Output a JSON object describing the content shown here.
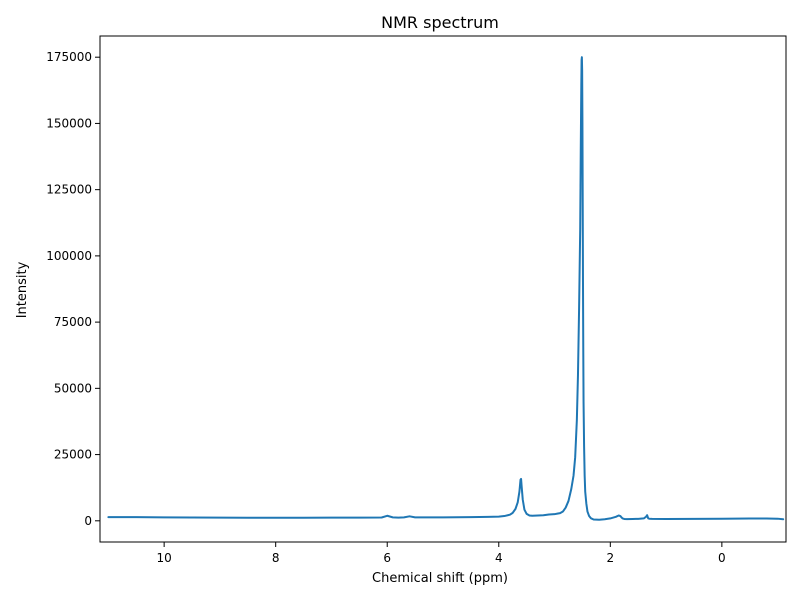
{
  "chart_data": {
    "type": "line",
    "title": "NMR spectrum",
    "xlabel": "Chemical shift (ppm)",
    "ylabel": "Intensity",
    "x_axis_inverted": true,
    "xlim": [
      11.15,
      -1.15
    ],
    "ylim": [
      -8000,
      183000
    ],
    "xticks": [
      10,
      8,
      6,
      4,
      2,
      0
    ],
    "xtick_labels": [
      "10",
      "8",
      "6",
      "4",
      "2",
      "0"
    ],
    "yticks": [
      0,
      25000,
      50000,
      75000,
      100000,
      125000,
      150000,
      175000
    ],
    "ytick_labels": [
      "0",
      "25000",
      "50000",
      "75000",
      "100000",
      "125000",
      "150000",
      "175000"
    ],
    "grid": false,
    "legend": "none",
    "line_color": "#1f77b4",
    "series": [
      {
        "x": [
          11.0,
          10.5,
          10.0,
          9.5,
          9.0,
          8.5,
          8.0,
          7.5,
          7.0,
          6.5,
          6.1,
          6.0,
          5.9,
          5.8,
          5.7,
          5.6,
          5.5,
          5.0,
          4.5,
          4.2,
          4.0,
          3.9,
          3.8,
          3.75,
          3.7,
          3.66,
          3.63,
          3.61,
          3.6,
          3.59,
          3.57,
          3.54,
          3.5,
          3.45,
          3.4,
          3.3,
          3.2,
          3.1,
          3.0,
          2.95,
          2.9,
          2.85,
          2.8,
          2.75,
          2.7,
          2.66,
          2.63,
          2.6,
          2.58,
          2.56,
          2.54,
          2.53,
          2.52,
          2.515,
          2.51,
          2.505,
          2.5,
          2.495,
          2.49,
          2.485,
          2.48,
          2.47,
          2.46,
          2.45,
          2.43,
          2.41,
          2.38,
          2.35,
          2.3,
          2.2,
          2.1,
          2.0,
          1.9,
          1.85,
          1.82,
          1.8,
          1.78,
          1.75,
          1.7,
          1.6,
          1.5,
          1.4,
          1.36,
          1.34,
          1.33,
          1.32,
          1.3,
          1.25,
          1.0,
          0.5,
          0.0,
          -0.5,
          -0.8,
          -1.0,
          -1.1
        ],
        "y": [
          1400,
          1400,
          1300,
          1250,
          1200,
          1150,
          1150,
          1150,
          1200,
          1200,
          1250,
          1900,
          1300,
          1200,
          1300,
          1700,
          1300,
          1300,
          1400,
          1500,
          1600,
          1800,
          2300,
          3000,
          4500,
          7000,
          11000,
          15500,
          15800,
          13000,
          8000,
          4200,
          2600,
          2000,
          1900,
          2000,
          2100,
          2400,
          2500,
          2700,
          2900,
          3500,
          5000,
          7500,
          12000,
          17000,
          24000,
          38000,
          55000,
          80000,
          110000,
          140000,
          165000,
          174000,
          175000,
          170000,
          150000,
          120000,
          90000,
          65000,
          45000,
          28000,
          17000,
          11000,
          6500,
          3500,
          1800,
          1000,
          500,
          400,
          600,
          900,
          1500,
          2000,
          1800,
          1300,
          900,
          700,
          650,
          700,
          750,
          900,
          1500,
          2100,
          1500,
          900,
          800,
          750,
          700,
          750,
          800,
          850,
          850,
          800,
          600
        ]
      }
    ]
  }
}
